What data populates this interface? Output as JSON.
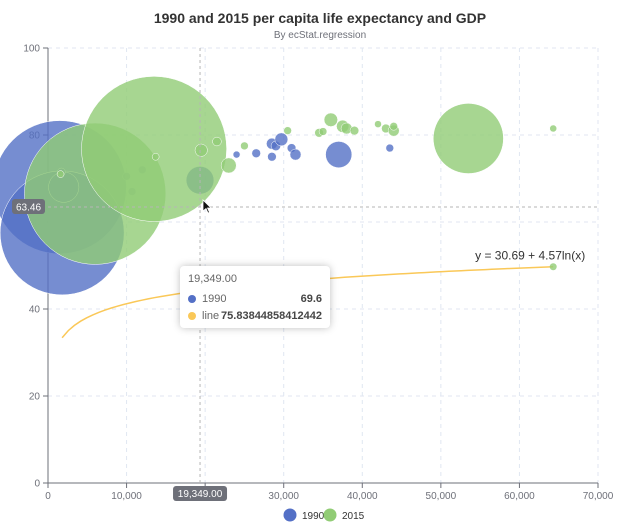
{
  "chart_data": {
    "type": "scatter",
    "title": "1990 and 2015 per capita life expectancy and GDP",
    "subtitle": "By ecStat.regression",
    "xlabel": "",
    "ylabel": "",
    "xlim": [
      0,
      70000
    ],
    "ylim": [
      0,
      100
    ],
    "x_ticks": [
      0,
      10000,
      20000,
      30000,
      40000,
      50000,
      60000,
      70000
    ],
    "x_tick_labels": [
      "0",
      "10,000",
      "20,000",
      "30,000",
      "40,000",
      "50,000",
      "60,000",
      "70,000"
    ],
    "y_ticks": [
      0,
      20,
      40,
      60,
      80,
      100
    ],
    "y_tick_labels": [
      "0",
      "20",
      "40",
      "60",
      "80",
      "100"
    ],
    "grid": true,
    "legend": [
      "1990",
      "2015"
    ],
    "legend_position": "bottom-center",
    "colors": {
      "1990": "#5470c6",
      "2015": "#91cc75",
      "line": "#fac858"
    },
    "regression": {
      "intercept": 30.69,
      "slope": 4.57,
      "equation": "y = 30.69 + 4.57ln(x)",
      "x_range": [
        1800,
        64300
      ]
    },
    "series": [
      {
        "name": "1990",
        "points": [
          [
            1500,
            68,
            1154605773
          ],
          [
            1800,
            57.5,
            1000000000
          ],
          [
            2000,
            68,
            60000000
          ],
          [
            1700,
            71.5,
            4000000
          ],
          [
            10000,
            70.5,
            4000000
          ],
          [
            10700,
            67,
            4000000
          ],
          [
            12000,
            72,
            4000000
          ],
          [
            19349,
            69.6,
            50000000
          ],
          [
            24000,
            75.5,
            2000000
          ],
          [
            26500,
            75.8,
            5000000
          ],
          [
            28500,
            78,
            8000000
          ],
          [
            28500,
            75,
            5000000
          ],
          [
            29000,
            77.5,
            6000000
          ],
          [
            29700,
            79,
            11000000
          ],
          [
            31000,
            77,
            5000000
          ],
          [
            31500,
            75.5,
            8000000
          ],
          [
            37000,
            75.5,
            45000000
          ],
          [
            43500,
            77,
            4000000
          ]
        ]
      },
      {
        "name": "2015",
        "points": [
          [
            6000,
            66.5,
            1300000000
          ],
          [
            13500,
            76.8,
            1370000000
          ],
          [
            1600,
            71,
            2000000
          ],
          [
            13700,
            75,
            2000000
          ],
          [
            19500,
            76.5,
            10000000
          ],
          [
            21500,
            78.5,
            5000000
          ],
          [
            23000,
            73,
            15000000
          ],
          [
            25000,
            77.5,
            4000000
          ],
          [
            30500,
            81,
            4000000
          ],
          [
            34500,
            80.5,
            5000000
          ],
          [
            35000,
            80.8,
            4000000
          ],
          [
            36000,
            83.5,
            12000000
          ],
          [
            37500,
            82,
            10000000
          ],
          [
            38000,
            81.5,
            8000000
          ],
          [
            39000,
            81,
            5000000
          ],
          [
            42000,
            82.5,
            3000000
          ],
          [
            43000,
            81.5,
            5000000
          ],
          [
            44000,
            81,
            8000000
          ],
          [
            44000,
            82,
            4000000
          ],
          [
            53500,
            79.2,
            320000000
          ],
          [
            64300,
            81.5,
            3000000
          ]
        ]
      }
    ],
    "axis_pointer": {
      "x_label": "19,349.00",
      "y_label": "63.46",
      "x_value": 19349,
      "y_value": 63.46
    },
    "tooltip": {
      "title": "19,349.00",
      "rows": [
        {
          "name": "1990",
          "value": "69.6",
          "color": "#5470c6"
        },
        {
          "name": "line",
          "value": "75.83844858412442",
          "color": "#fac858"
        }
      ]
    }
  }
}
